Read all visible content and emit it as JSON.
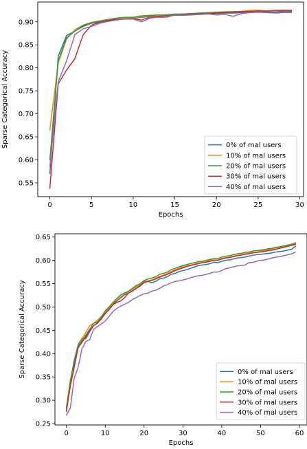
{
  "chart_data": [
    {
      "type": "line",
      "xlabel": "Epochs",
      "ylabel": "Sparse Categorical Accuracy",
      "xlim": [
        -1.45,
        30.45
      ],
      "ylim": [
        0.52,
        0.943
      ],
      "xticks": [
        0,
        5,
        10,
        15,
        20,
        25,
        30
      ],
      "yticks": [
        0.55,
        0.6,
        0.65,
        0.7,
        0.75,
        0.8,
        0.85,
        0.9
      ],
      "tick_labels_x": [
        "0",
        "5",
        "10",
        "15",
        "20",
        "25",
        "30"
      ],
      "tick_labels_y": [
        "0.55",
        "0.60",
        "0.65",
        "0.70",
        "0.75",
        "0.80",
        "0.85",
        "0.90"
      ],
      "grid": false,
      "legend_position": "lower-right",
      "x": [
        0,
        1,
        2,
        3,
        4,
        5,
        6,
        7,
        8,
        9,
        10,
        11,
        12,
        13,
        14,
        15,
        16,
        17,
        18,
        19,
        20,
        21,
        22,
        23,
        24,
        25,
        26,
        27,
        28,
        29
      ],
      "series": [
        {
          "name": "0% of mal users",
          "color": "#1f77b4",
          "values": [
            0.57,
            0.825,
            0.87,
            0.88,
            0.89,
            0.897,
            0.9,
            0.903,
            0.905,
            0.907,
            0.908,
            0.91,
            0.911,
            0.912,
            0.913,
            0.914,
            0.915,
            0.916,
            0.917,
            0.918,
            0.918,
            0.919,
            0.919,
            0.92,
            0.92,
            0.921,
            0.921,
            0.921,
            0.922,
            0.922
          ]
        },
        {
          "name": "10% of mal users",
          "color": "#ff7f0e",
          "values": [
            0.665,
            0.81,
            0.862,
            0.883,
            0.893,
            0.899,
            0.902,
            0.905,
            0.907,
            0.908,
            0.909,
            0.911,
            0.913,
            0.914,
            0.915,
            0.916,
            0.917,
            0.918,
            0.919,
            0.92,
            0.921,
            0.922,
            0.922,
            0.923,
            0.925,
            0.925,
            0.924,
            0.925,
            0.925,
            0.925
          ]
        },
        {
          "name": "20% of mal users",
          "color": "#2ca02c",
          "values": [
            0.6,
            0.815,
            0.865,
            0.88,
            0.892,
            0.898,
            0.902,
            0.905,
            0.908,
            0.91,
            0.91,
            0.913,
            0.914,
            0.915,
            0.915,
            0.917,
            0.917,
            0.918,
            0.919,
            0.92,
            0.921,
            0.921,
            0.922,
            0.922,
            0.923,
            0.923,
            0.924,
            0.924,
            0.924,
            0.925
          ]
        },
        {
          "name": "30% of mal users",
          "color": "#d62728",
          "values": [
            0.538,
            0.765,
            0.795,
            0.82,
            0.872,
            0.893,
            0.899,
            0.903,
            0.905,
            0.906,
            0.907,
            0.904,
            0.91,
            0.912,
            0.913,
            0.915,
            0.915,
            0.916,
            0.917,
            0.918,
            0.919,
            0.92,
            0.921,
            0.922,
            0.922,
            0.924,
            0.923,
            0.924,
            0.925,
            0.924
          ]
        },
        {
          "name": "40% of mal users",
          "color": "#9467bd",
          "values": [
            0.585,
            0.77,
            0.815,
            0.872,
            0.885,
            0.89,
            0.897,
            0.901,
            0.904,
            0.906,
            0.906,
            0.9,
            0.908,
            0.91,
            0.91,
            0.915,
            0.914,
            0.915,
            0.916,
            0.917,
            0.915,
            0.916,
            0.912,
            0.918,
            0.92,
            0.921,
            0.92,
            0.919,
            0.92,
            0.92
          ]
        }
      ]
    },
    {
      "type": "line",
      "xlabel": "Epochs",
      "ylabel": "Sparse Categorical Accuracy",
      "xlim": [
        -2.95,
        61.95
      ],
      "ylim": [
        0.247,
        0.657
      ],
      "xticks": [
        0,
        10,
        20,
        30,
        40,
        50,
        60
      ],
      "yticks": [
        0.25,
        0.3,
        0.35,
        0.4,
        0.45,
        0.5,
        0.55,
        0.6,
        0.65
      ],
      "tick_labels_x": [
        "0",
        "10",
        "20",
        "30",
        "40",
        "50",
        "60"
      ],
      "tick_labels_y": [
        "0.25",
        "0.30",
        "0.35",
        "0.40",
        "0.45",
        "0.50",
        "0.55",
        "0.60",
        "0.65"
      ],
      "grid": false,
      "legend_position": "lower-right",
      "x": [
        0,
        1,
        2,
        3,
        4,
        5,
        6,
        7,
        8,
        9,
        10,
        11,
        12,
        13,
        14,
        15,
        16,
        17,
        18,
        19,
        20,
        21,
        22,
        23,
        24,
        25,
        26,
        27,
        28,
        29,
        30,
        31,
        32,
        33,
        34,
        35,
        36,
        37,
        38,
        39,
        40,
        41,
        42,
        43,
        44,
        45,
        46,
        47,
        48,
        49,
        50,
        51,
        52,
        53,
        54,
        55,
        56,
        57,
        58,
        59
      ],
      "series": [
        {
          "name": "0% of mal users",
          "color": "#1f77b4",
          "values": [
            0.28,
            0.34,
            0.385,
            0.418,
            0.433,
            0.432,
            0.447,
            0.46,
            0.465,
            0.475,
            0.488,
            0.495,
            0.505,
            0.513,
            0.52,
            0.526,
            0.53,
            0.535,
            0.54,
            0.545,
            0.552,
            0.555,
            0.552,
            0.555,
            0.56,
            0.562,
            0.565,
            0.57,
            0.572,
            0.576,
            0.578,
            0.58,
            0.583,
            0.586,
            0.589,
            0.59,
            0.591,
            0.593,
            0.596,
            0.595,
            0.598,
            0.6,
            0.601,
            0.603,
            0.605,
            0.606,
            0.607,
            0.609,
            0.611,
            0.612,
            0.613,
            0.614,
            0.615,
            0.616,
            0.618,
            0.619,
            0.62,
            0.622,
            0.624,
            0.63
          ]
        },
        {
          "name": "10% of mal users",
          "color": "#ff7f0e",
          "values": [
            0.278,
            0.335,
            0.375,
            0.414,
            0.432,
            0.445,
            0.46,
            0.465,
            0.472,
            0.48,
            0.49,
            0.498,
            0.508,
            0.515,
            0.522,
            0.528,
            0.533,
            0.538,
            0.543,
            0.548,
            0.555,
            0.556,
            0.558,
            0.562,
            0.566,
            0.568,
            0.572,
            0.576,
            0.58,
            0.583,
            0.586,
            0.588,
            0.59,
            0.592,
            0.594,
            0.596,
            0.597,
            0.6,
            0.601,
            0.601,
            0.604,
            0.606,
            0.607,
            0.609,
            0.611,
            0.612,
            0.614,
            0.616,
            0.617,
            0.618,
            0.62,
            0.621,
            0.623,
            0.624,
            0.627,
            0.628,
            0.63,
            0.632,
            0.635,
            0.638
          ]
        },
        {
          "name": "20% of mal users",
          "color": "#2ca02c",
          "values": [
            0.284,
            0.342,
            0.38,
            0.416,
            0.428,
            0.44,
            0.452,
            0.465,
            0.468,
            0.478,
            0.492,
            0.5,
            0.51,
            0.518,
            0.526,
            0.53,
            0.534,
            0.54,
            0.546,
            0.55,
            0.557,
            0.56,
            0.562,
            0.565,
            0.57,
            0.572,
            0.575,
            0.58,
            0.583,
            0.586,
            0.589,
            0.591,
            0.593,
            0.595,
            0.597,
            0.598,
            0.6,
            0.602,
            0.604,
            0.604,
            0.607,
            0.609,
            0.61,
            0.612,
            0.614,
            0.615,
            0.617,
            0.618,
            0.62,
            0.621,
            0.622,
            0.623,
            0.625,
            0.626,
            0.628,
            0.629,
            0.631,
            0.633,
            0.634,
            0.636
          ]
        },
        {
          "name": "30% of mal users",
          "color": "#d62728",
          "values": [
            0.276,
            0.33,
            0.37,
            0.412,
            0.424,
            0.436,
            0.45,
            0.46,
            0.466,
            0.474,
            0.486,
            0.494,
            0.505,
            0.51,
            0.513,
            0.52,
            0.53,
            0.534,
            0.54,
            0.546,
            0.553,
            0.555,
            0.557,
            0.56,
            0.564,
            0.567,
            0.57,
            0.574,
            0.578,
            0.581,
            0.584,
            0.587,
            0.589,
            0.591,
            0.593,
            0.595,
            0.596,
            0.598,
            0.6,
            0.6,
            0.603,
            0.605,
            0.606,
            0.608,
            0.61,
            0.611,
            0.613,
            0.614,
            0.616,
            0.617,
            0.618,
            0.619,
            0.621,
            0.622,
            0.624,
            0.626,
            0.628,
            0.63,
            0.632,
            0.634
          ]
        },
        {
          "name": "40% of mal users",
          "color": "#9467bd",
          "values": [
            0.268,
            0.283,
            0.347,
            0.37,
            0.41,
            0.426,
            0.43,
            0.452,
            0.458,
            0.464,
            0.47,
            0.48,
            0.49,
            0.497,
            0.502,
            0.506,
            0.51,
            0.516,
            0.52,
            0.525,
            0.528,
            0.53,
            0.534,
            0.536,
            0.54,
            0.545,
            0.548,
            0.552,
            0.555,
            0.556,
            0.558,
            0.56,
            0.563,
            0.565,
            0.567,
            0.568,
            0.57,
            0.572,
            0.575,
            0.575,
            0.578,
            0.582,
            0.584,
            0.586,
            0.588,
            0.589,
            0.59,
            0.595,
            0.596,
            0.598,
            0.6,
            0.601,
            0.603,
            0.605,
            0.607,
            0.608,
            0.61,
            0.612,
            0.614,
            0.618
          ]
        }
      ]
    }
  ]
}
